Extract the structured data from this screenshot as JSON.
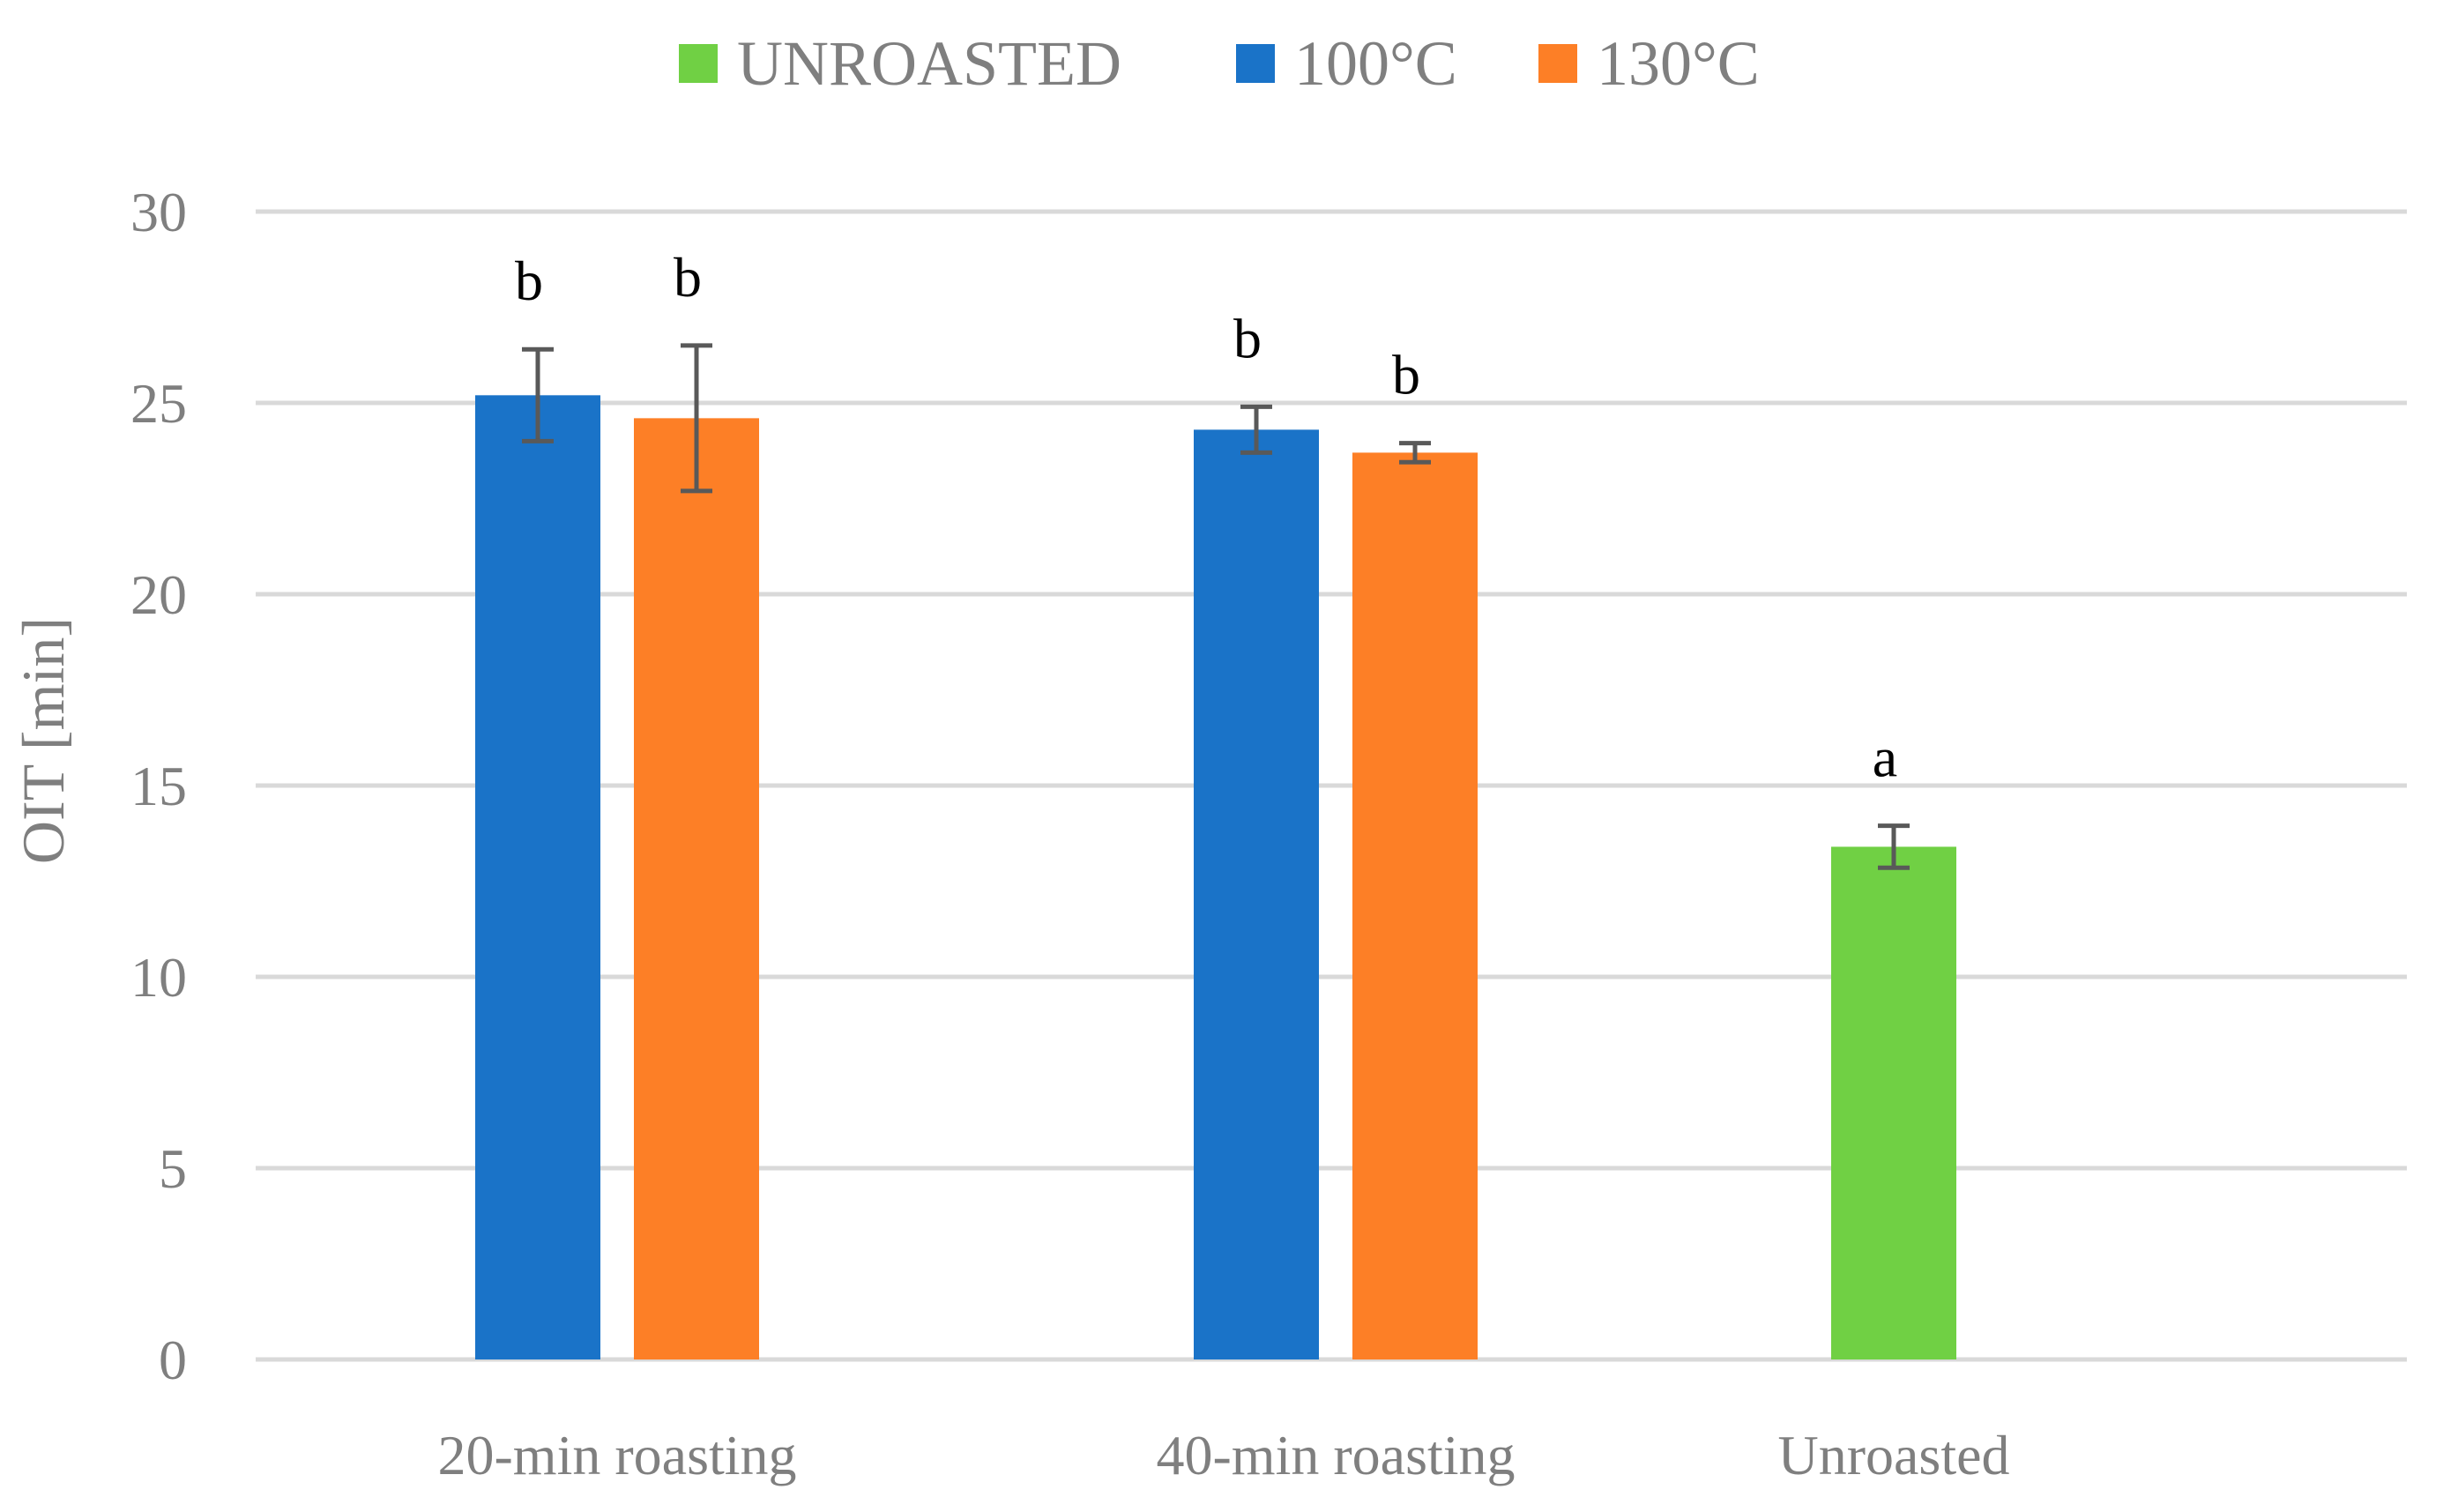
{
  "chart_data": {
    "type": "bar",
    "categories": [
      "20-min roasting",
      "40-min roasting",
      "Unroasted"
    ],
    "ylabel": "OIT [min]",
    "ylim": [
      0,
      30
    ],
    "yticks": [
      0,
      5,
      10,
      15,
      20,
      25,
      30
    ],
    "grid": true,
    "legend_position": "top",
    "legend": [
      "UNROASTED",
      "100°C",
      "130°C"
    ],
    "series": [
      {
        "name": "UNROASTED",
        "color": "#70d044",
        "values": [
          null,
          null,
          13.4
        ],
        "errors": [
          null,
          null,
          0.55
        ],
        "sig": [
          null,
          null,
          "a"
        ]
      },
      {
        "name": "100°C",
        "color": "#1a73c8",
        "values": [
          25.2,
          24.3,
          null
        ],
        "errors": [
          1.2,
          0.6,
          null
        ],
        "sig": [
          "b",
          "b",
          null
        ]
      },
      {
        "name": "130°C",
        "color": "#fd7f26",
        "values": [
          24.6,
          23.7,
          null
        ],
        "errors": [
          1.9,
          0.25,
          null
        ],
        "sig": [
          "b",
          "b",
          null
        ]
      }
    ]
  }
}
